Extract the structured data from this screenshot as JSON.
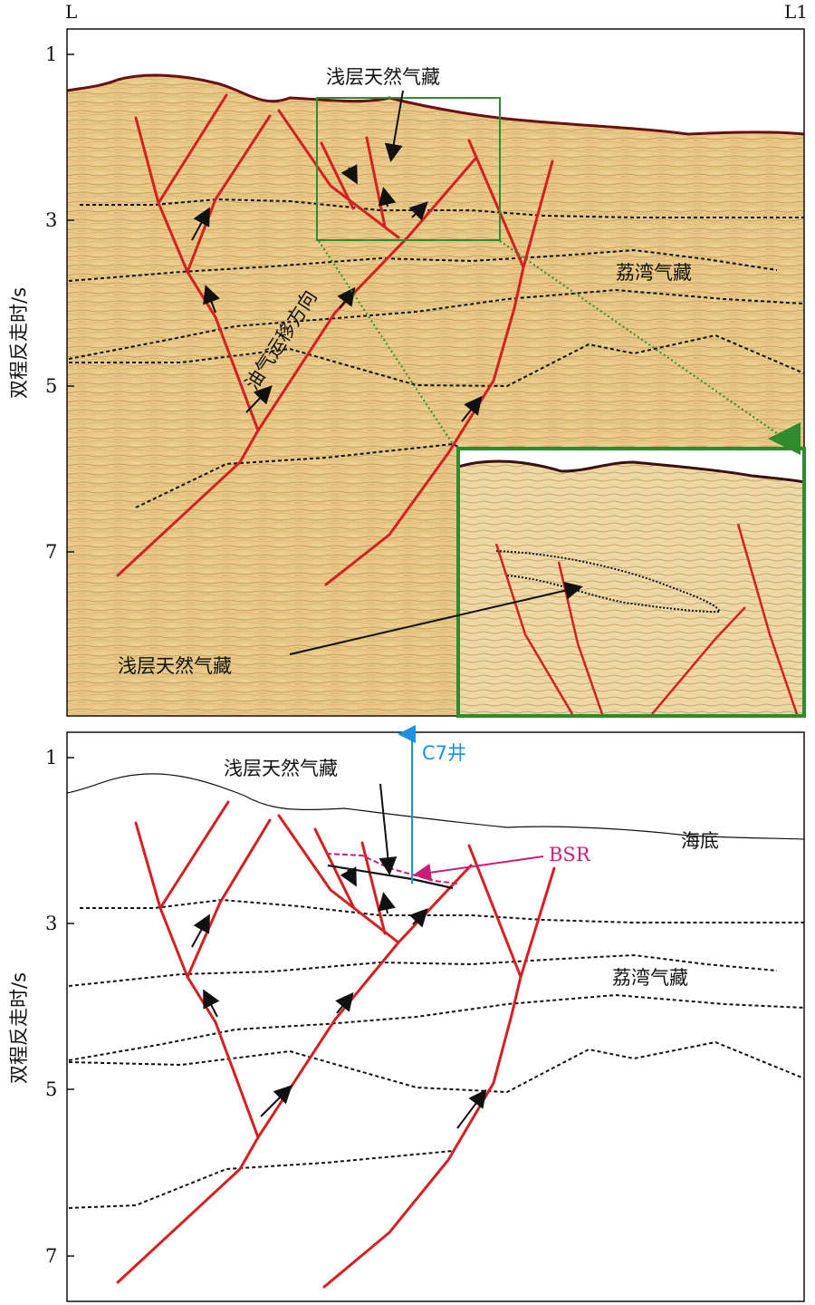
{
  "corner_labels": {
    "left": "L",
    "right": "L1"
  },
  "y_axis": {
    "label": "双程反走时/s",
    "ticks": [
      "1",
      "3",
      "5",
      "7"
    ]
  },
  "top_panel": {
    "annotations": {
      "shallow_gas": "浅层天然气藏",
      "liwan_gas": "荔湾气藏",
      "migration_direction": "油气运移方向",
      "shallow_gas_lower": "浅层天然气藏"
    }
  },
  "bottom_panel": {
    "annotations": {
      "shallow_gas": "浅层天然气藏",
      "well": "C7井",
      "bsr": "BSR",
      "seafloor": "海底",
      "liwan_gas": "荔湾气藏"
    }
  },
  "colors": {
    "fault": "#d42020",
    "seismic_bg": "#e8c987",
    "zoom_box": "#2e8b2e",
    "well": "#1e90e0",
    "bsr": "#c81e78"
  }
}
